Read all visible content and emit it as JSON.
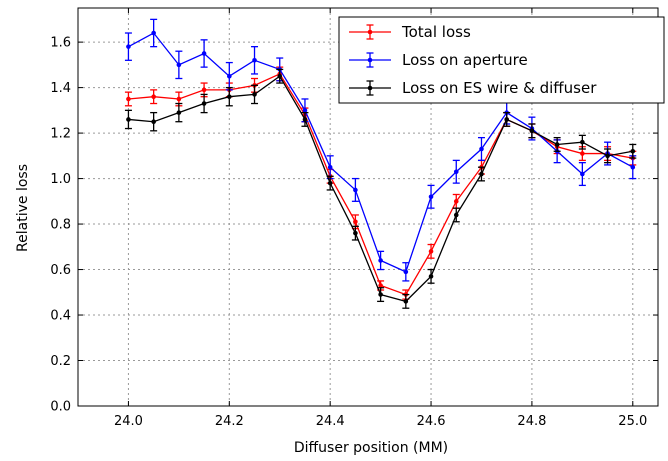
{
  "chart_data": {
    "type": "line",
    "xlabel": "Diffuser position (MM)",
    "ylabel": "Relative loss",
    "xlim": [
      23.9,
      25.05
    ],
    "ylim": [
      0.0,
      1.75
    ],
    "xticks": [
      24.0,
      24.2,
      24.4,
      24.6,
      24.8,
      25.0
    ],
    "xtick_labels": [
      "24.0",
      "24.2",
      "24.4",
      "24.6",
      "24.8",
      "25.0"
    ],
    "yticks": [
      0.0,
      0.2,
      0.4,
      0.6,
      0.8,
      1.0,
      1.2,
      1.4,
      1.6
    ],
    "ytick_labels": [
      "0.0",
      "0.2",
      "0.4",
      "0.6",
      "0.8",
      "1.0",
      "1.2",
      "1.4",
      "1.6"
    ],
    "grid": true,
    "legend_position": "top-right",
    "x": [
      24.0,
      24.05,
      24.1,
      24.15,
      24.2,
      24.25,
      24.3,
      24.35,
      24.4,
      24.45,
      24.5,
      24.55,
      24.6,
      24.65,
      24.7,
      24.75,
      24.8,
      24.85,
      24.9,
      24.95,
      25.0
    ],
    "series": [
      {
        "name": "Total loss",
        "color": "#ff0000",
        "values": [
          1.35,
          1.36,
          1.35,
          1.39,
          1.39,
          1.41,
          1.46,
          1.28,
          1.01,
          0.81,
          0.53,
          0.49,
          0.68,
          0.9,
          1.05,
          1.26,
          1.21,
          1.14,
          1.11,
          1.11,
          1.09
        ],
        "errors": [
          0.03,
          0.03,
          0.03,
          0.03,
          0.03,
          0.03,
          0.03,
          0.03,
          0.03,
          0.03,
          0.02,
          0.02,
          0.03,
          0.03,
          0.03,
          0.03,
          0.03,
          0.03,
          0.03,
          0.03,
          0.03
        ]
      },
      {
        "name": "Loss on aperture",
        "color": "#0000ff",
        "values": [
          1.58,
          1.64,
          1.5,
          1.55,
          1.45,
          1.52,
          1.48,
          1.3,
          1.05,
          0.95,
          0.64,
          0.59,
          0.92,
          1.03,
          1.13,
          1.29,
          1.22,
          1.12,
          1.02,
          1.11,
          1.05
        ],
        "errors": [
          0.06,
          0.06,
          0.06,
          0.06,
          0.06,
          0.06,
          0.05,
          0.05,
          0.05,
          0.05,
          0.04,
          0.04,
          0.05,
          0.05,
          0.05,
          0.05,
          0.05,
          0.05,
          0.05,
          0.05,
          0.05
        ]
      },
      {
        "name": "Loss on ES wire & diffuser",
        "color": "#000000",
        "values": [
          1.26,
          1.25,
          1.29,
          1.33,
          1.36,
          1.37,
          1.45,
          1.26,
          0.98,
          0.76,
          0.49,
          0.46,
          0.57,
          0.84,
          1.02,
          1.26,
          1.21,
          1.15,
          1.16,
          1.1,
          1.12
        ],
        "errors": [
          0.04,
          0.04,
          0.04,
          0.04,
          0.04,
          0.04,
          0.03,
          0.03,
          0.03,
          0.03,
          0.03,
          0.03,
          0.03,
          0.03,
          0.03,
          0.03,
          0.03,
          0.03,
          0.03,
          0.03,
          0.03
        ]
      }
    ]
  }
}
